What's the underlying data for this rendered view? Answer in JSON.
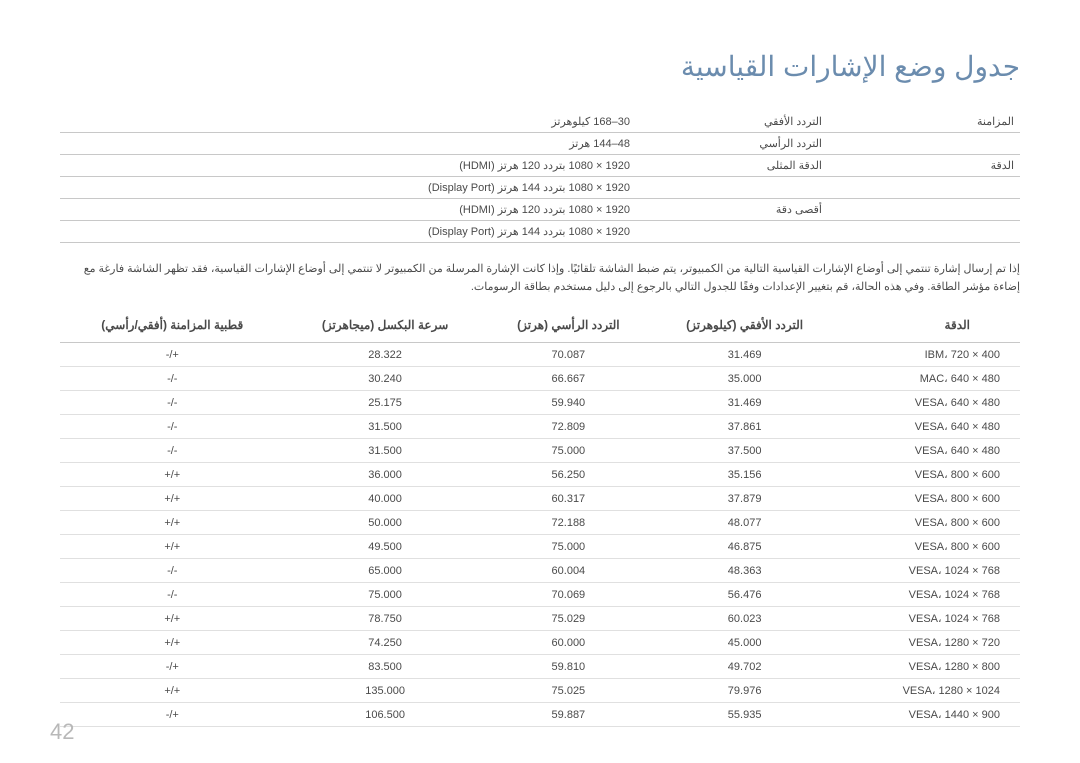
{
  "title": "جدول وضع الإشارات القياسية",
  "specs": {
    "rows": [
      {
        "label": "المزامنة",
        "sub": "التردد الأفقي",
        "val": "30–168 كيلوهرتز"
      },
      {
        "label": "",
        "sub": "التردد الرأسي",
        "val": "48–144 هرتز"
      },
      {
        "label": "الدقة",
        "sub": "الدقة المثلى",
        "val": "1920 × 1080 بتردد 120 هرتز (HDMI)"
      },
      {
        "label": "",
        "sub": "",
        "val": "1920 × 1080 بتردد 144 هرتز (Display Port)"
      },
      {
        "label": "",
        "sub": "أقصى دقة",
        "val": "1920 × 1080 بتردد 120 هرتز (HDMI)"
      },
      {
        "label": "",
        "sub": "",
        "val": "1920 × 1080 بتردد 144 هرتز (Display Port)"
      }
    ]
  },
  "note": "إذا تم إرسال إشارة تنتمي إلى أوضاع الإشارات القياسية التالية من الكمبيوتر، يتم ضبط الشاشة تلقائيًا. وإذا كانت الإشارة المرسلة من الكمبيوتر لا تنتمي إلى أوضاع الإشارات القياسية، فقد تظهر الشاشة فارغة مع إضاءة مؤشر الطاقة. وفي هذه الحالة، قم بتغيير الإعدادات وفقًا للجدول التالي بالرجوع إلى دليل مستخدم بطاقة الرسومات.",
  "headers": {
    "c1": "الدقة",
    "c2": "التردد الأفقي (كيلوهرتز)",
    "c3": "التردد الرأسي (هرتز)",
    "c4": "سرعة البكسل (ميجاهرتز)",
    "c5": "قطبية المزامنة (أفقي/رأسي)"
  },
  "rows": [
    {
      "res": "IBM، 720 × 400",
      "h": "31.469",
      "v": "70.087",
      "p": "28.322",
      "s": "-/+"
    },
    {
      "res": "MAC، 640 × 480",
      "h": "35.000",
      "v": "66.667",
      "p": "30.240",
      "s": "-/-"
    },
    {
      "res": "VESA، 640 × 480",
      "h": "31.469",
      "v": "59.940",
      "p": "25.175",
      "s": "-/-"
    },
    {
      "res": "VESA، 640 × 480",
      "h": "37.861",
      "v": "72.809",
      "p": "31.500",
      "s": "-/-"
    },
    {
      "res": "VESA، 640 × 480",
      "h": "37.500",
      "v": "75.000",
      "p": "31.500",
      "s": "-/-"
    },
    {
      "res": "VESA، 800 × 600",
      "h": "35.156",
      "v": "56.250",
      "p": "36.000",
      "s": "+/+"
    },
    {
      "res": "VESA، 800 × 600",
      "h": "37.879",
      "v": "60.317",
      "p": "40.000",
      "s": "+/+"
    },
    {
      "res": "VESA، 800 × 600",
      "h": "48.077",
      "v": "72.188",
      "p": "50.000",
      "s": "+/+"
    },
    {
      "res": "VESA، 800 × 600",
      "h": "46.875",
      "v": "75.000",
      "p": "49.500",
      "s": "+/+"
    },
    {
      "res": "VESA، 1024 × 768",
      "h": "48.363",
      "v": "60.004",
      "p": "65.000",
      "s": "-/-"
    },
    {
      "res": "VESA، 1024 × 768",
      "h": "56.476",
      "v": "70.069",
      "p": "75.000",
      "s": "-/-"
    },
    {
      "res": "VESA، 1024 × 768",
      "h": "60.023",
      "v": "75.029",
      "p": "78.750",
      "s": "+/+"
    },
    {
      "res": "VESA، 1280 × 720",
      "h": "45.000",
      "v": "60.000",
      "p": "74.250",
      "s": "+/+"
    },
    {
      "res": "VESA، 1280 × 800",
      "h": "49.702",
      "v": "59.810",
      "p": "83.500",
      "s": "-/+"
    },
    {
      "res": "VESA، 1280 × 1024",
      "h": "79.976",
      "v": "75.025",
      "p": "135.000",
      "s": "+/+"
    },
    {
      "res": "VESA، 1440 × 900",
      "h": "55.935",
      "v": "59.887",
      "p": "106.500",
      "s": "-/+"
    }
  ],
  "page": "42"
}
